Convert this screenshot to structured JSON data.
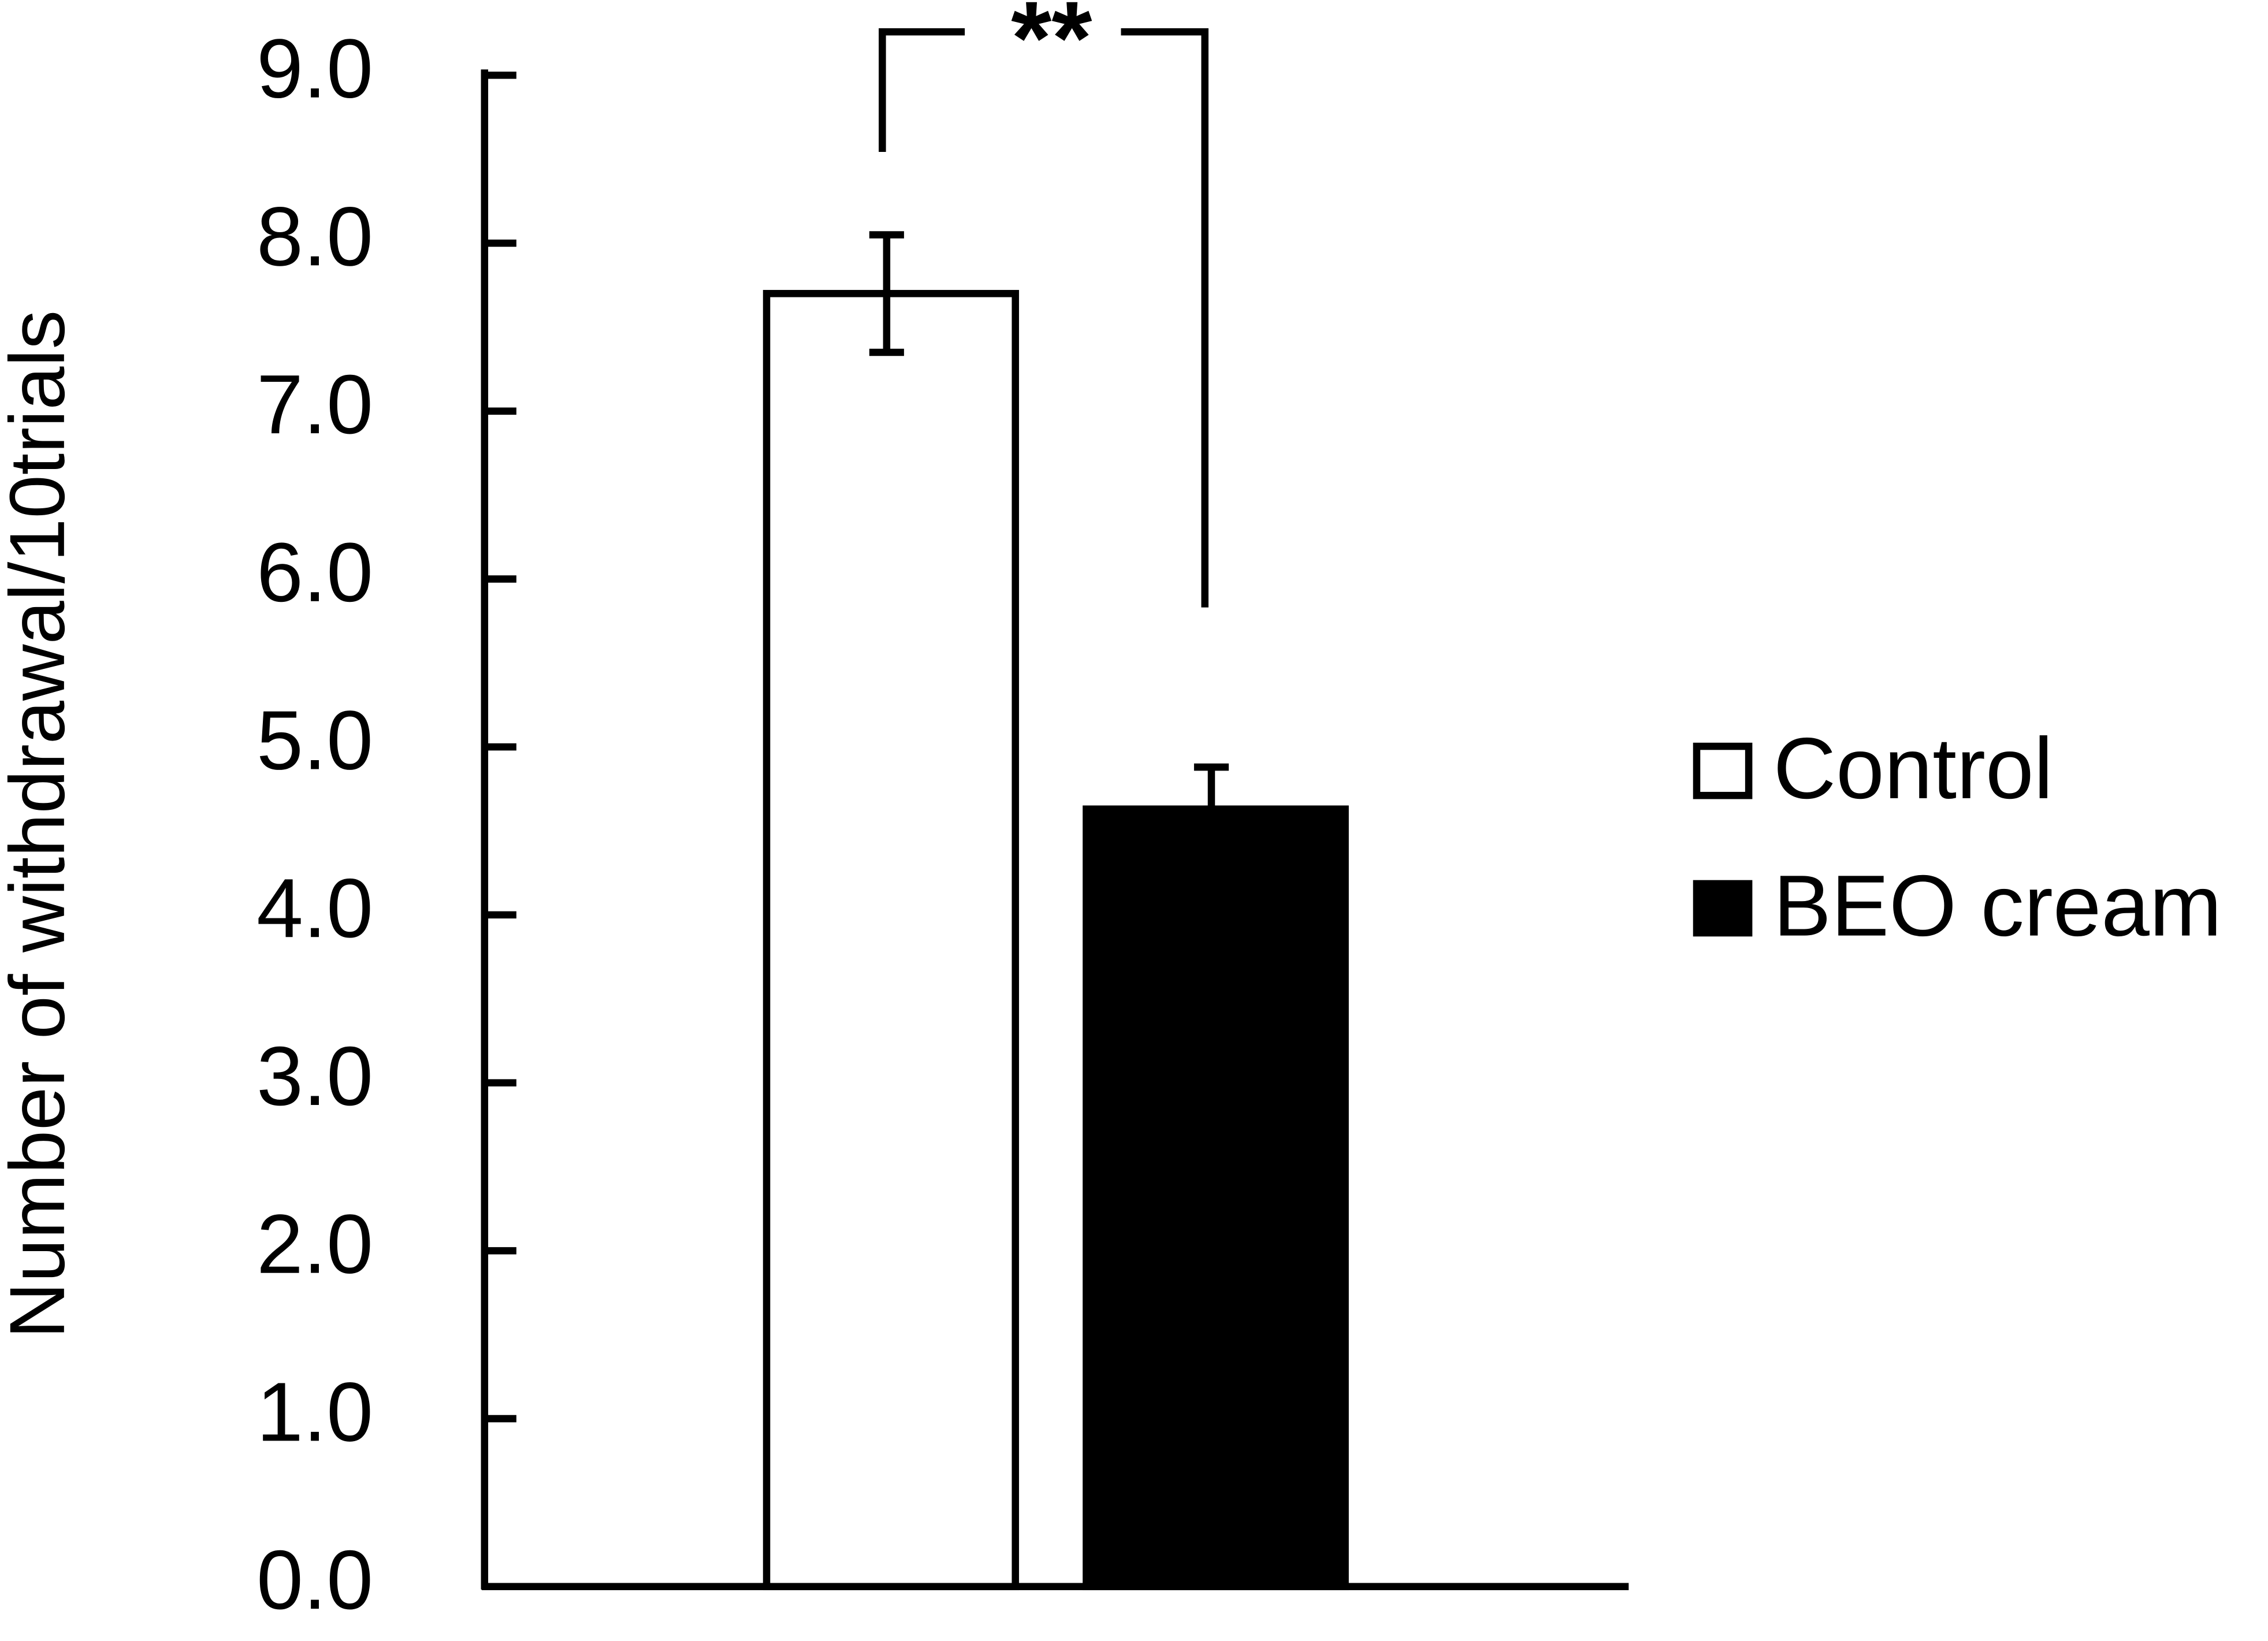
{
  "chart_data": {
    "type": "bar",
    "y_label": "Number of withdrawal/10trials",
    "categories": [
      null
    ],
    "series": [
      {
        "name": "Control",
        "color": "#ffffff",
        "values": [
          7.7
        ],
        "errors": [
          0.35
        ]
      },
      {
        "name": "BEO cream",
        "color": "#000000",
        "values": [
          4.63
        ],
        "errors": [
          0.25
        ]
      }
    ],
    "ylim": [
      0,
      9
    ],
    "yticks": [
      {
        "value": 0,
        "label": "0.0"
      },
      {
        "value": 1,
        "label": "1.0"
      },
      {
        "value": 2,
        "label": "2.0"
      },
      {
        "value": 3,
        "label": "3.0"
      },
      {
        "value": 4,
        "label": "4.0"
      },
      {
        "value": 5,
        "label": "5.0"
      },
      {
        "value": 6,
        "label": "6.0"
      },
      {
        "value": 7,
        "label": "7.0"
      },
      {
        "value": 8,
        "label": "8.0"
      },
      {
        "value": 9,
        "label": "9.0"
      }
    ],
    "annotation": "**",
    "legend": "right"
  }
}
